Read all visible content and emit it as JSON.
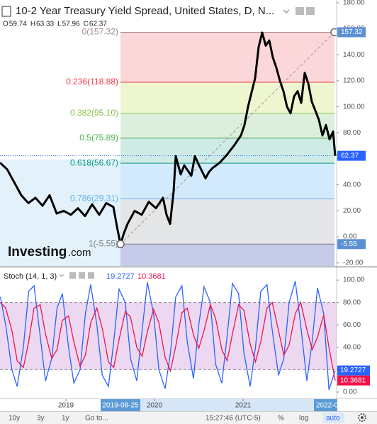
{
  "chart_data": [
    {
      "type": "line",
      "title": "10-2 Year Treasury Yield Spread, United States, D, N...",
      "ohlc": [
        {
          "key": "O",
          "value": 59.74
        },
        {
          "key": "H",
          "value": 63.33
        },
        {
          "key": "L",
          "value": 57.96
        },
        {
          "key": "C",
          "value": 62.37
        }
      ],
      "logo": {
        "name": "Investing",
        "suffix": ".com"
      },
      "xlim": [
        2018.256,
        2022.056
      ],
      "xticks": [
        2019,
        2020,
        2021
      ],
      "time_badges": [
        "2019-08-25",
        "2022-0"
      ],
      "ylim": [
        -22.3,
        182.1
      ],
      "yticks": [
        {
          "value": -20,
          "label": "-20.00"
        },
        {
          "value": 0,
          "label": "0.00"
        },
        {
          "value": 20,
          "label": "20.00"
        },
        {
          "value": 40,
          "label": "40.00"
        },
        {
          "value": 60,
          "label": "60.00"
        },
        {
          "value": 80,
          "label": "80.00"
        },
        {
          "value": 100,
          "label": "100.00"
        },
        {
          "value": 120,
          "label": "120.00"
        },
        {
          "value": 140,
          "label": "140.00"
        },
        {
          "value": 160,
          "label": "160.00"
        },
        {
          "value": 180,
          "label": "180.00"
        }
      ],
      "series": [
        {
          "color": "#000000",
          "x": [
            2018.256,
            2018.336,
            2018.416,
            2018.496,
            2018.576,
            2018.656,
            2018.736,
            2018.816,
            2018.896,
            2018.976,
            2019.056,
            2019.136,
            2019.216,
            2019.296,
            2019.376,
            2019.456,
            2019.536,
            2019.576,
            2019.616,
            2019.656,
            2019.696,
            2019.776,
            2019.856,
            2019.936,
            2020.016,
            2020.096,
            2020.136,
            2020.176,
            2020.216,
            2020.24,
            2020.296,
            2020.336,
            2020.416,
            2020.456,
            2020.496,
            2020.576,
            2020.616,
            2020.656,
            2020.736,
            2020.816,
            2020.896,
            2020.976,
            2021.016,
            2021.056,
            2021.136,
            2021.176,
            2021.216,
            2021.256,
            2021.296,
            2021.336,
            2021.376,
            2021.416,
            2021.456,
            2021.496,
            2021.536,
            2021.576,
            2021.616,
            2021.656,
            2021.696,
            2021.736,
            2021.776,
            2021.816,
            2021.856,
            2021.896,
            2021.936,
            2021.976,
            2022.016,
            2022.04
          ],
          "values": [
            57,
            52,
            42,
            32,
            26,
            30,
            24,
            32,
            18,
            20,
            17,
            22,
            16,
            25,
            17,
            26,
            23,
            8,
            -5.55,
            3,
            10,
            20,
            17,
            27,
            22,
            30,
            17,
            10,
            35,
            62,
            48,
            55,
            47,
            62,
            56,
            45,
            50,
            53,
            57,
            63,
            70,
            78,
            86,
            100,
            122,
            146,
            157,
            147,
            151,
            138,
            130,
            120,
            112,
            100,
            95,
            108,
            112,
            103,
            126,
            118,
            104,
            97,
            90,
            78,
            86,
            75,
            81,
            62.37
          ]
        }
      ],
      "current": 62.37,
      "fib": {
        "x_range": [
          2019.616,
          2022.032
        ],
        "levels": [
          {
            "label": "0(157.32)",
            "value": 157.32,
            "color": "#9e8a8a"
          },
          {
            "label": "0.236(118.88)",
            "value": 118.88,
            "color": "#f23645"
          },
          {
            "label": "0.382(95.10)",
            "value": 95.1,
            "color": "#8bc34a"
          },
          {
            "label": "0.5(75.89)",
            "value": 75.89,
            "color": "#4caf50"
          },
          {
            "label": "0.618(56.67)",
            "value": 56.67,
            "color": "#089981"
          },
          {
            "label": "0.786(29.31)",
            "value": 29.31,
            "color": "#64b5f6"
          },
          {
            "label": "1(-5.55)",
            "value": -5.55,
            "color": "#787b86"
          }
        ]
      },
      "toolbar": [
        "10y",
        "3y",
        "1y",
        "Go to...",
        "15:27:46 (UTC-5)",
        "%",
        "log",
        "auto"
      ]
    },
    {
      "type": "line",
      "title": "Stoch (14, 1, 3)",
      "ylim": [
        -5.7,
        110.8
      ],
      "yticks": [
        {
          "value": 0,
          "label": "0.00"
        },
        {
          "value": 20,
          "label": "20.00"
        },
        {
          "value": 40,
          "label": "40.00"
        },
        {
          "value": 60,
          "label": "60.00"
        },
        {
          "value": 80,
          "label": "80.00"
        },
        {
          "value": 100,
          "label": "100.00"
        }
      ],
      "band": [
        20,
        80
      ],
      "x": [
        2018.26,
        2018.32,
        2018.39,
        2018.45,
        2018.52,
        2018.58,
        2018.64,
        2018.71,
        2018.77,
        2018.84,
        2018.9,
        2018.96,
        2019.03,
        2019.09,
        2019.16,
        2019.22,
        2019.28,
        2019.35,
        2019.41,
        2019.48,
        2019.54,
        2019.6,
        2019.67,
        2019.73,
        2019.8,
        2019.86,
        2019.92,
        2019.99,
        2020.05,
        2020.12,
        2020.18,
        2020.24,
        2020.31,
        2020.37,
        2020.44,
        2020.5,
        2020.56,
        2020.63,
        2020.69,
        2020.76,
        2020.82,
        2020.88,
        2020.95,
        2021.01,
        2021.08,
        2021.14,
        2021.2,
        2021.27,
        2021.33,
        2021.4,
        2021.46,
        2021.52,
        2021.59,
        2021.65,
        2021.72,
        2021.78,
        2021.84,
        2021.91,
        2021.97,
        2022.04
      ],
      "series": [
        {
          "color": "#2962ff",
          "values": [
            85,
            60,
            20,
            5,
            40,
            90,
            95,
            50,
            10,
            30,
            75,
            88,
            40,
            8,
            20,
            70,
            96,
            60,
            15,
            5,
            45,
            92,
            80,
            30,
            10,
            55,
            98,
            70,
            20,
            3,
            35,
            85,
            95,
            45,
            12,
            60,
            94,
            80,
            25,
            8,
            50,
            97,
            88,
            35,
            5,
            40,
            90,
            96,
            55,
            15,
            30,
            80,
            99,
            60,
            10,
            45,
            93,
            70,
            2,
            19.2727
          ]
        },
        {
          "color": "#f0134d",
          "values": [
            80,
            75,
            55,
            28,
            22,
            45,
            75,
            78,
            52,
            30,
            38,
            64,
            68,
            45,
            23,
            33,
            62,
            75,
            57,
            27,
            22,
            47,
            72,
            67,
            40,
            32,
            54,
            74,
            62,
            31,
            19,
            41,
            71,
            75,
            51,
            39,
            55,
            78,
            66,
            38,
            28,
            52,
            78,
            73,
            43,
            27,
            45,
            75,
            80,
            55,
            33,
            42,
            70,
            80,
            56,
            38,
            49,
            69,
            40,
            10.3681
          ]
        }
      ]
    }
  ]
}
